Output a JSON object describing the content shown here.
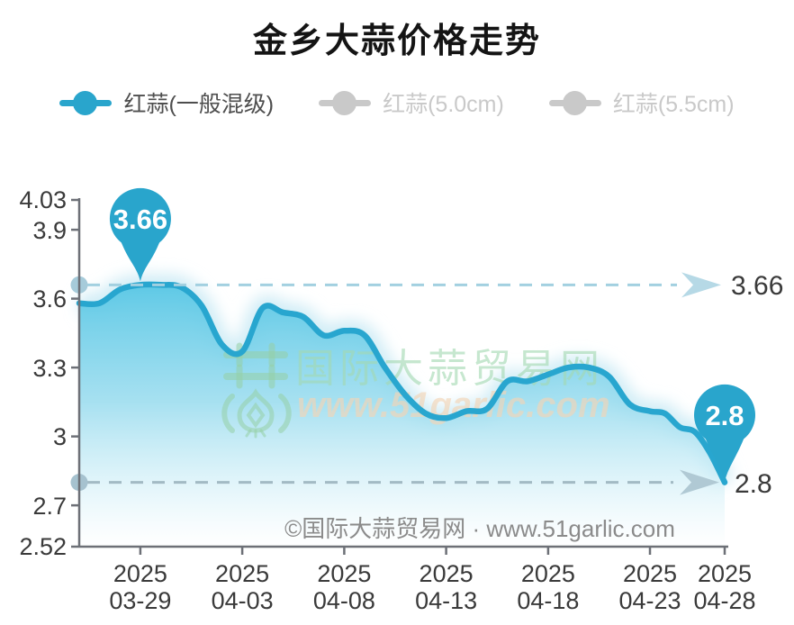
{
  "title": "金乡大蒜价格走势",
  "legend": {
    "items": [
      {
        "label": "红蒜(一般混级)",
        "state": "active",
        "color": "#29a5cc"
      },
      {
        "label": "红蒜(5.0cm)",
        "state": "inactive",
        "color": "#c9c9c9"
      },
      {
        "label": "红蒜(5.5cm)",
        "state": "inactive",
        "color": "#c9c9c9"
      }
    ]
  },
  "chart_data": {
    "type": "line",
    "title": "金乡大蒜价格走势",
    "smooth": true,
    "area": true,
    "grid": false,
    "legend_position": "top",
    "ylim": [
      2.52,
      4.03
    ],
    "y_tick_labels": [
      "4.03",
      "3.9",
      "3.6",
      "3.3",
      "3",
      "2.7",
      "2.52"
    ],
    "x_tick_labels": [
      [
        "2025",
        "03-29"
      ],
      [
        "2025",
        "04-03"
      ],
      [
        "2025",
        "04-08"
      ],
      [
        "2025",
        "04-13"
      ],
      [
        "2025",
        "04-18"
      ],
      [
        "2025",
        "04-23"
      ],
      [
        "2025",
        "04-28"
      ]
    ],
    "series": [
      {
        "name": "红蒜(一般混级)",
        "color": "#29a5cc",
        "dates": [
          "03-26",
          "03-27",
          "03-28",
          "03-29",
          "03-30",
          "03-31",
          "04-01",
          "04-02",
          "04-03",
          "04-04",
          "04-05",
          "04-06",
          "04-07",
          "04-08",
          "04-09",
          "04-10",
          "04-11",
          "04-12",
          "04-13",
          "04-14",
          "04-15",
          "04-16",
          "04-17",
          "04-18",
          "04-19",
          "04-20",
          "04-21",
          "04-22",
          "04-23",
          "04-24",
          "04-25",
          "04-26",
          "04-27",
          "04-28"
        ],
        "values": [
          3.58,
          3.58,
          3.64,
          3.66,
          3.66,
          3.65,
          3.57,
          3.4,
          3.37,
          3.56,
          3.54,
          3.52,
          3.44,
          3.46,
          3.44,
          3.3,
          3.18,
          3.1,
          3.08,
          3.11,
          3.12,
          3.24,
          3.24,
          3.27,
          3.3,
          3.3,
          3.26,
          3.14,
          3.11,
          3.1,
          3.04,
          3.02,
          2.93,
          2.8
        ]
      }
    ],
    "markers": {
      "max": {
        "value": 3.66,
        "label": "3.66"
      },
      "last": {
        "value": 2.8,
        "label": "2.8"
      }
    }
  },
  "annotations": {
    "max_badge": "3.66",
    "last_badge": "2.8",
    "max_right_label": "3.66",
    "last_right_label": "2.8"
  },
  "watermark": {
    "site_name": "国际大蒜贸易网",
    "site_url": "www.51garlic.com"
  },
  "footer": {
    "copyright": "©国际大蒜贸易网 · www.51garlic.com"
  },
  "colors": {
    "line": "#28a6cf",
    "balloon": "#29a5cc",
    "area_top": "#58c7e5",
    "area_bottom": "#ffffff",
    "dashed_max": "#a2d0e0",
    "dashed_last": "#a3bac4",
    "axis": "#6d7077",
    "label": "#3a3a3a",
    "inactive_legend": "#c9c9c9"
  }
}
